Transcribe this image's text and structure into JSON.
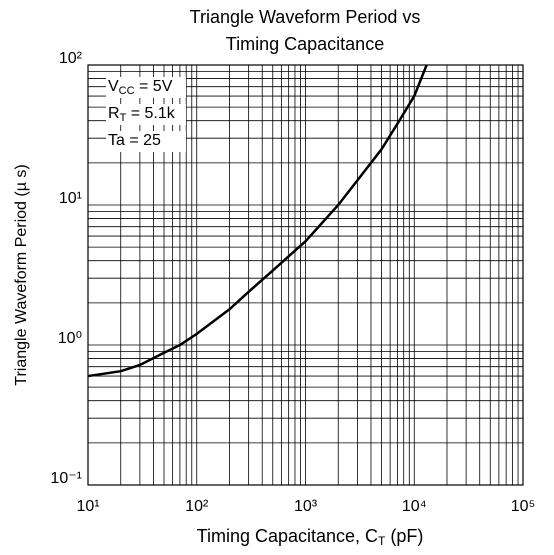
{
  "chart_data": {
    "type": "line",
    "title": [
      "Triangle Waveform Period vs",
      "Timing Capacitance"
    ],
    "x_label": {
      "main": "Timing Capacitance, C",
      "sub": "T",
      "tail": " (pF)"
    },
    "y_label": "Triangle Waveform Period (µ s)",
    "annotations": [
      {
        "main": "V",
        "sub": "CC",
        "tail": " = 5V"
      },
      {
        "main": "R",
        "sub": "T",
        "tail": " = 5.1k"
      },
      {
        "main": "Ta = 25",
        "sub": "",
        "tail": ""
      }
    ],
    "x": [
      10,
      20,
      30,
      50,
      70,
      100,
      200,
      300,
      500,
      700,
      1000,
      2000,
      3000,
      5000,
      7000,
      10000,
      13000
    ],
    "series": [
      {
        "name": "Period",
        "color": "#000000",
        "values": [
          0.6,
          0.65,
          0.72,
          0.88,
          1.0,
          1.2,
          1.8,
          2.4,
          3.4,
          4.3,
          5.5,
          10,
          15,
          25,
          38,
          60,
          100
        ]
      }
    ],
    "xlim": [
      10,
      100000
    ],
    "ylim": [
      0.1,
      100
    ],
    "xticks": [
      {
        "value": 10,
        "label": "10¹"
      },
      {
        "value": 100,
        "label": "10²"
      },
      {
        "value": 1000,
        "label": "10³"
      },
      {
        "value": 10000,
        "label": "10⁴"
      },
      {
        "value": 100000,
        "label": "10⁵"
      }
    ],
    "yticks": [
      {
        "value": 0.1,
        "label": "10⁻¹"
      },
      {
        "value": 1,
        "label": "10⁰"
      },
      {
        "value": 10,
        "label": "10¹"
      },
      {
        "value": 100,
        "label": "10²"
      }
    ],
    "xscale": "log",
    "yscale": "log",
    "grid": true,
    "minor_grid": true
  }
}
